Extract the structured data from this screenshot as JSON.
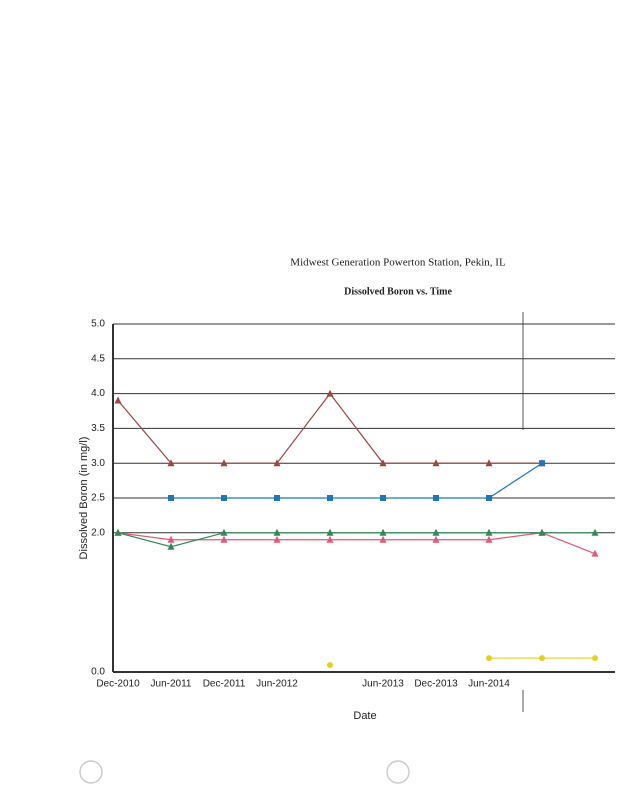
{
  "chart_data": {
    "type": "line",
    "title": "Midwest Generation Powerton Station, Pekin, IL",
    "subtitle": "Dissolved Boron vs. Time",
    "x_label": "Date",
    "y_label": "Dissolved Boron (in mg/l)",
    "categories": [
      "Dec-2010",
      "Jun-2011",
      "Dec-2011",
      "Jun-2012",
      null,
      "Jun-2013",
      "Dec-2013",
      "Jun-2014",
      null,
      null
    ],
    "ylim": [
      0,
      5
    ],
    "yticks": [
      {
        "value": 0,
        "label": "0.0"
      },
      {
        "value": 2,
        "label": "2.0"
      },
      {
        "value": 2.5,
        "label": "2.5"
      },
      {
        "value": 3,
        "label": "3.0"
      },
      {
        "value": 3.5,
        "label": "3.5"
      },
      {
        "value": 4,
        "label": "4.0"
      },
      {
        "value": 4.5,
        "label": "4.5"
      },
      {
        "value": 5,
        "label": "5.0"
      }
    ],
    "grid": true,
    "series": [
      {
        "color": "#a0443c",
        "marker": "triangle",
        "values": [
          3.9,
          3.0,
          3.0,
          3.0,
          4.0,
          3.0,
          3.0,
          3.0,
          3.0,
          null
        ]
      },
      {
        "color": "#e05a7a",
        "marker": "triangle",
        "values": [
          2.0,
          1.9,
          1.9,
          1.9,
          1.9,
          1.9,
          1.9,
          1.9,
          2.0,
          1.7
        ]
      },
      {
        "color": "#1f78b4",
        "marker": "square",
        "values": [
          null,
          2.5,
          2.5,
          2.5,
          2.5,
          2.5,
          2.5,
          2.5,
          3.0,
          null
        ]
      },
      {
        "color": "#2e8b57",
        "marker": "triangle",
        "values": [
          2.0,
          1.8,
          2.0,
          2.0,
          2.0,
          2.0,
          2.0,
          2.0,
          2.0,
          2.0
        ]
      },
      {
        "color": "#e8d020",
        "marker": "circle",
        "values": [
          null,
          null,
          null,
          null,
          0.1,
          null,
          null,
          0.2,
          0.2,
          0.2
        ]
      }
    ]
  }
}
